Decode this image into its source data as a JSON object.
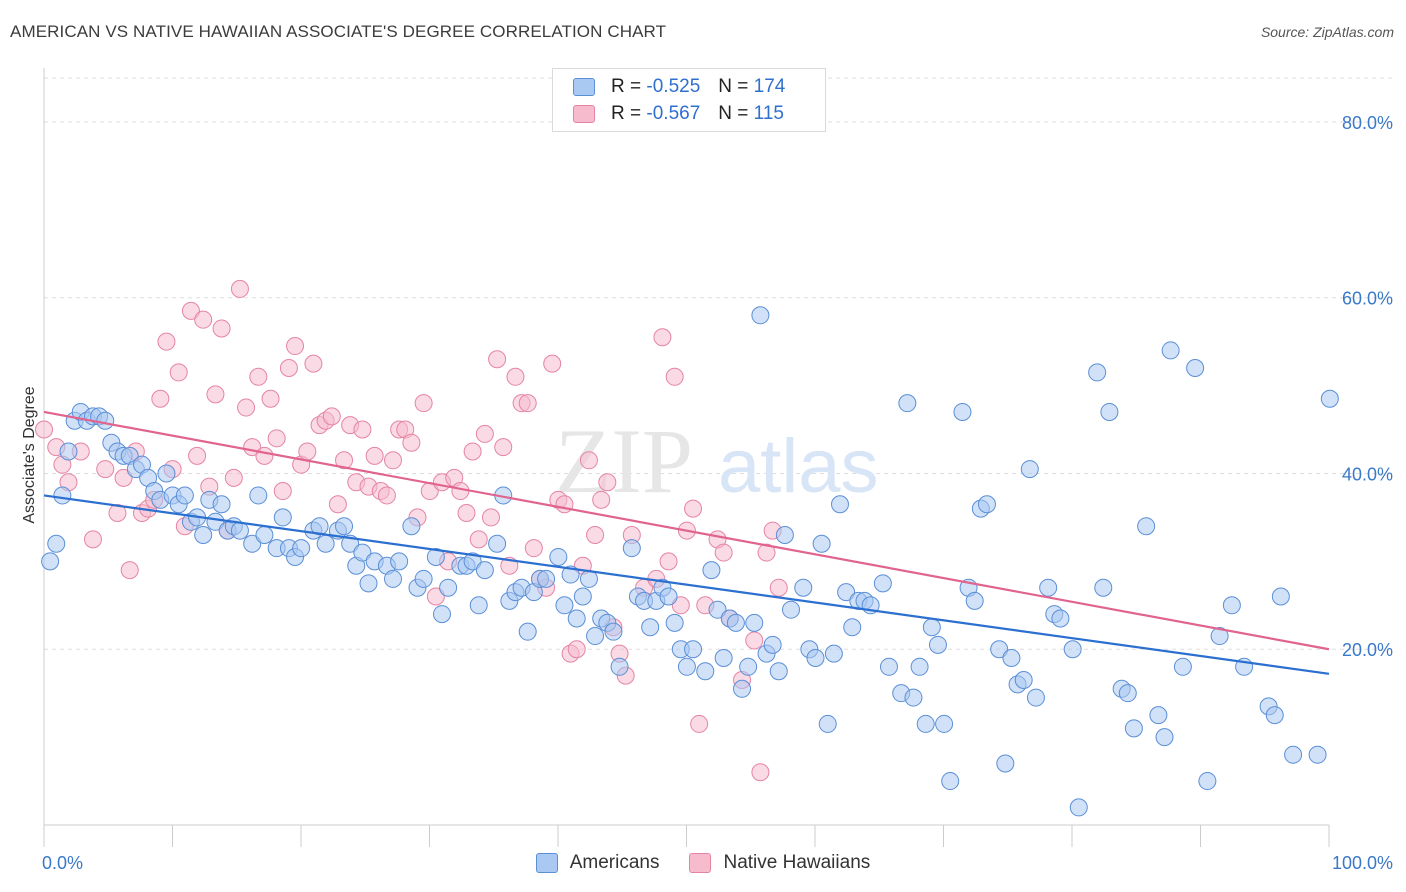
{
  "title": "AMERICAN VS NATIVE HAWAIIAN ASSOCIATE'S DEGREE CORRELATION CHART",
  "source": "Source: ZipAtlas.com",
  "watermark": {
    "zip": "ZIP",
    "atlas": "atlas"
  },
  "legend": {
    "r_label": "R =",
    "n_label": "N =",
    "rows": [
      {
        "r": "-0.525",
        "n": "174"
      },
      {
        "r": "-0.567",
        "n": "115"
      }
    ]
  },
  "colors": {
    "blue_fill": "#a9c8f2",
    "blue_stroke": "#5b8fd6",
    "blue_line": "#2b6fd0",
    "pink_fill": "#f6bccd",
    "pink_stroke": "#e585a3",
    "pink_line": "#e0648e",
    "tick_label": "#3a78c9",
    "grid": "#dddddd"
  },
  "chart_data": {
    "type": "scatter",
    "title": "AMERICAN VS NATIVE HAWAIIAN ASSOCIATE'S DEGREE CORRELATION CHART",
    "xlabel": "",
    "ylabel": "Associate's Degree",
    "xlim": [
      0,
      100
    ],
    "ylim": [
      0,
      85
    ],
    "x_tick_labels": [
      "0.0%",
      "100.0%"
    ],
    "y_ticks": [
      20,
      40,
      60,
      80
    ],
    "y_tick_labels": [
      "20.0%",
      "40.0%",
      "60.0%",
      "80.0%"
    ],
    "grid": "horizontal dashed",
    "legend_position": "bottom-center",
    "series": [
      {
        "name": "Americans",
        "r": -0.525,
        "n": 174,
        "trend": {
          "x": [
            0,
            100
          ],
          "y": [
            37.5,
            17.2
          ]
        },
        "points": [
          [
            0.5,
            30
          ],
          [
            1,
            32
          ],
          [
            1.5,
            37.5
          ],
          [
            2,
            42.5
          ],
          [
            2.5,
            46
          ],
          [
            3,
            47
          ],
          [
            3.5,
            46
          ],
          [
            4,
            46.5
          ],
          [
            4.5,
            46.5
          ],
          [
            5,
            46
          ],
          [
            5.5,
            43.5
          ],
          [
            6,
            42.5
          ],
          [
            6.5,
            42
          ],
          [
            7,
            42
          ],
          [
            7.5,
            40.5
          ],
          [
            8,
            41
          ],
          [
            8.5,
            39.5
          ],
          [
            9,
            38
          ],
          [
            9.5,
            37
          ],
          [
            10,
            40
          ],
          [
            10.5,
            37.5
          ],
          [
            11,
            36.5
          ],
          [
            11.5,
            37.5
          ],
          [
            12,
            34.5
          ],
          [
            12.5,
            35
          ],
          [
            13,
            33
          ],
          [
            13.5,
            37
          ],
          [
            14,
            34.5
          ],
          [
            14.5,
            36.5
          ],
          [
            15,
            33.5
          ],
          [
            15.5,
            34
          ],
          [
            16,
            33.5
          ],
          [
            17,
            32
          ],
          [
            17.5,
            37.5
          ],
          [
            18,
            33
          ],
          [
            19,
            31.5
          ],
          [
            19.5,
            35
          ],
          [
            20,
            31.5
          ],
          [
            20.5,
            30.5
          ],
          [
            21,
            31.5
          ],
          [
            22,
            33.5
          ],
          [
            22.5,
            34
          ],
          [
            23,
            32
          ],
          [
            24,
            33.5
          ],
          [
            24.5,
            34
          ],
          [
            25,
            32
          ],
          [
            25.5,
            29.5
          ],
          [
            26,
            31
          ],
          [
            26.5,
            27.5
          ],
          [
            27,
            30
          ],
          [
            28,
            29.5
          ],
          [
            28.5,
            28
          ],
          [
            29,
            30
          ],
          [
            30,
            34
          ],
          [
            30.5,
            27
          ],
          [
            31,
            28
          ],
          [
            32,
            30.5
          ],
          [
            32.5,
            24
          ],
          [
            33,
            27
          ],
          [
            34,
            29.5
          ],
          [
            34.5,
            29.5
          ],
          [
            35,
            30
          ],
          [
            35.5,
            25
          ],
          [
            36,
            29
          ],
          [
            37,
            32
          ],
          [
            37.5,
            37.5
          ],
          [
            38,
            25.5
          ],
          [
            38.5,
            26.5
          ],
          [
            39,
            27
          ],
          [
            39.5,
            22
          ],
          [
            40,
            26.5
          ],
          [
            40.5,
            28
          ],
          [
            41,
            28
          ],
          [
            42,
            30.5
          ],
          [
            42.5,
            25
          ],
          [
            43,
            28.5
          ],
          [
            43.5,
            23.5
          ],
          [
            44,
            26
          ],
          [
            44.5,
            28
          ],
          [
            45,
            21.5
          ],
          [
            45.5,
            23.5
          ],
          [
            46,
            23
          ],
          [
            46.5,
            22
          ],
          [
            47,
            18
          ],
          [
            48,
            31.5
          ],
          [
            48.5,
            26
          ],
          [
            49,
            25.5
          ],
          [
            49.5,
            22.5
          ],
          [
            50,
            25.5
          ],
          [
            50.5,
            27
          ],
          [
            51,
            26
          ],
          [
            51.5,
            23
          ],
          [
            52,
            20
          ],
          [
            52.5,
            18
          ],
          [
            53,
            20
          ],
          [
            54,
            17.5
          ],
          [
            54.5,
            29
          ],
          [
            55,
            24.5
          ],
          [
            55.5,
            19
          ],
          [
            56,
            23.5
          ],
          [
            56.5,
            23
          ],
          [
            57,
            15.5
          ],
          [
            57.5,
            18
          ],
          [
            58,
            23
          ],
          [
            58.5,
            58
          ],
          [
            59,
            19.5
          ],
          [
            59.5,
            20.5
          ],
          [
            60,
            17.5
          ],
          [
            60.5,
            33
          ],
          [
            61,
            24.5
          ],
          [
            62,
            27
          ],
          [
            62.5,
            20
          ],
          [
            63,
            19
          ],
          [
            63.5,
            32
          ],
          [
            64,
            11.5
          ],
          [
            64.5,
            19.5
          ],
          [
            65,
            36.5
          ],
          [
            65.5,
            26.5
          ],
          [
            66,
            22.5
          ],
          [
            66.5,
            25.5
          ],
          [
            67,
            25.5
          ],
          [
            67.5,
            25
          ],
          [
            68.5,
            27.5
          ],
          [
            69,
            18
          ],
          [
            70,
            15
          ],
          [
            70.5,
            48
          ],
          [
            71,
            14.5
          ],
          [
            71.5,
            18
          ],
          [
            72,
            11.5
          ],
          [
            72.5,
            22.5
          ],
          [
            73,
            20.5
          ],
          [
            73.5,
            11.5
          ],
          [
            74,
            5
          ],
          [
            75,
            47
          ],
          [
            75.5,
            27
          ],
          [
            76,
            25.5
          ],
          [
            76.5,
            36
          ],
          [
            77,
            36.5
          ],
          [
            78,
            20
          ],
          [
            78.5,
            7
          ],
          [
            79,
            19
          ],
          [
            79.5,
            16
          ],
          [
            80,
            16.5
          ],
          [
            80.5,
            40.5
          ],
          [
            81,
            14.5
          ],
          [
            82,
            27
          ],
          [
            82.5,
            24
          ],
          [
            83,
            23.5
          ],
          [
            84,
            20
          ],
          [
            84.5,
            2
          ],
          [
            86,
            51.5
          ],
          [
            86.5,
            27
          ],
          [
            87,
            47
          ],
          [
            88,
            15.5
          ],
          [
            88.5,
            15
          ],
          [
            89,
            11
          ],
          [
            90,
            34
          ],
          [
            91,
            12.5
          ],
          [
            91.5,
            10
          ],
          [
            92,
            54
          ],
          [
            93,
            18
          ],
          [
            94,
            52
          ],
          [
            95,
            5
          ],
          [
            96,
            21.5
          ],
          [
            97,
            25
          ],
          [
            98,
            18
          ],
          [
            100,
            13.5
          ],
          [
            100.5,
            12.5
          ],
          [
            101,
            26
          ],
          [
            102,
            8
          ],
          [
            104,
            8
          ],
          [
            105,
            48.5
          ]
        ]
      },
      {
        "name": "Native Hawaiians",
        "r": -0.567,
        "n": 115,
        "trend": {
          "x": [
            0,
            100
          ],
          "y": [
            47,
            20
          ]
        },
        "points": [
          [
            0,
            45
          ],
          [
            1,
            43
          ],
          [
            1.5,
            41
          ],
          [
            2,
            39
          ],
          [
            3,
            42.5
          ],
          [
            4,
            32.5
          ],
          [
            5,
            40.5
          ],
          [
            6,
            35.5
          ],
          [
            6.5,
            39.5
          ],
          [
            7,
            29
          ],
          [
            7.5,
            42.5
          ],
          [
            8,
            35.5
          ],
          [
            8.5,
            36
          ],
          [
            9,
            37
          ],
          [
            9.5,
            48.5
          ],
          [
            10,
            55
          ],
          [
            10.5,
            40.5
          ],
          [
            11,
            51.5
          ],
          [
            11.5,
            34
          ],
          [
            12,
            58.5
          ],
          [
            12.5,
            42
          ],
          [
            13,
            57.5
          ],
          [
            13.5,
            38.5
          ],
          [
            14,
            49
          ],
          [
            14.5,
            56.5
          ],
          [
            15,
            33.5
          ],
          [
            15.5,
            39.5
          ],
          [
            16,
            61
          ],
          [
            16.5,
            47.5
          ],
          [
            17,
            43
          ],
          [
            17.5,
            51
          ],
          [
            18,
            42
          ],
          [
            18.5,
            48.5
          ],
          [
            19,
            44
          ],
          [
            19.5,
            38
          ],
          [
            20,
            52
          ],
          [
            20.5,
            54.5
          ],
          [
            21,
            41
          ],
          [
            21.5,
            42.5
          ],
          [
            22,
            52.5
          ],
          [
            22.5,
            45.5
          ],
          [
            23,
            46
          ],
          [
            23.5,
            46.5
          ],
          [
            24,
            36.5
          ],
          [
            24.5,
            41.5
          ],
          [
            25,
            45.5
          ],
          [
            25.5,
            39
          ],
          [
            26,
            45
          ],
          [
            26.5,
            38.5
          ],
          [
            27,
            42
          ],
          [
            27.5,
            38
          ],
          [
            28,
            37.5
          ],
          [
            28.5,
            41.5
          ],
          [
            29,
            45
          ],
          [
            29.5,
            45
          ],
          [
            30,
            43.5
          ],
          [
            30.5,
            35
          ],
          [
            31,
            48
          ],
          [
            31.5,
            38
          ],
          [
            32,
            26
          ],
          [
            32.5,
            39
          ],
          [
            33,
            30
          ],
          [
            33.5,
            39.5
          ],
          [
            34,
            38
          ],
          [
            34.5,
            35.5
          ],
          [
            35,
            42.5
          ],
          [
            35.5,
            32.5
          ],
          [
            36,
            44.5
          ],
          [
            36.5,
            35
          ],
          [
            37,
            53
          ],
          [
            37.5,
            43
          ],
          [
            38,
            29.5
          ],
          [
            38.5,
            51
          ],
          [
            39,
            48
          ],
          [
            39.5,
            48
          ],
          [
            40,
            31.5
          ],
          [
            40.5,
            28
          ],
          [
            41,
            27
          ],
          [
            41.5,
            52.5
          ],
          [
            42,
            37
          ],
          [
            42.5,
            36.5
          ],
          [
            43,
            19.5
          ],
          [
            43.5,
            20
          ],
          [
            44,
            29.5
          ],
          [
            44.5,
            41.5
          ],
          [
            45,
            33
          ],
          [
            45.5,
            37
          ],
          [
            46,
            39
          ],
          [
            46.5,
            22.5
          ],
          [
            47,
            19.5
          ],
          [
            47.5,
            17
          ],
          [
            48,
            33
          ],
          [
            49,
            27
          ],
          [
            50,
            28
          ],
          [
            50.5,
            55.5
          ],
          [
            51,
            30
          ],
          [
            51.5,
            51
          ],
          [
            52,
            25
          ],
          [
            52.5,
            33.5
          ],
          [
            53,
            36
          ],
          [
            53.5,
            11.5
          ],
          [
            54,
            25
          ],
          [
            55,
            32.5
          ],
          [
            55.5,
            31
          ],
          [
            56,
            23.5
          ],
          [
            57,
            16.5
          ],
          [
            58,
            21
          ],
          [
            58.5,
            6
          ],
          [
            59,
            31
          ],
          [
            59.5,
            33.5
          ],
          [
            60,
            27
          ]
        ]
      }
    ]
  }
}
